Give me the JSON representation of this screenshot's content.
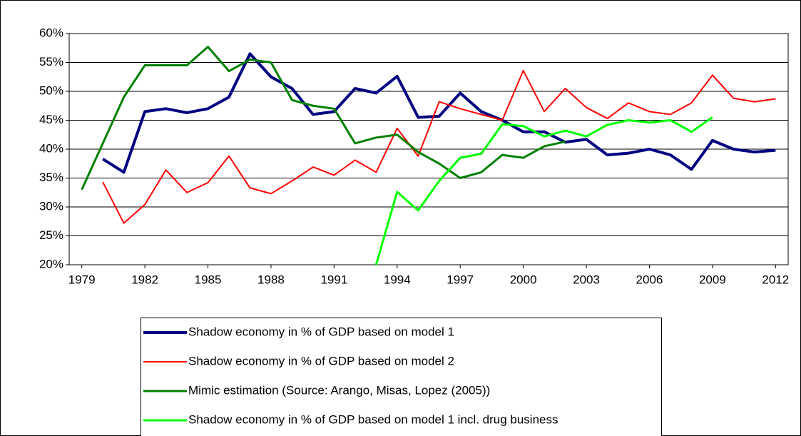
{
  "chart_data": {
    "type": "line",
    "x": [
      1979,
      1980,
      1981,
      1982,
      1983,
      1984,
      1985,
      1986,
      1987,
      1988,
      1989,
      1990,
      1991,
      1992,
      1993,
      1994,
      1995,
      1996,
      1997,
      1998,
      1999,
      2000,
      2001,
      2002,
      2003,
      2004,
      2005,
      2006,
      2007,
      2008,
      2009,
      2010,
      2011,
      2012
    ],
    "series": [
      {
        "name": "Shadow economy in % of GDP based on model 1",
        "color": "#000080",
        "width": 4,
        "values": [
          null,
          38.3,
          36,
          46.5,
          47,
          46.3,
          47,
          49,
          56.5,
          52.5,
          50.5,
          46,
          46.5,
          50.5,
          49.7,
          52.6,
          45.5,
          45.7,
          49.7,
          46.5,
          45,
          43,
          43,
          41.2,
          41.7,
          39,
          39.3,
          40,
          39,
          36.5,
          41.5,
          40,
          39.5,
          39.8
        ]
      },
      {
        "name": "Shadow economy in % of GDP based on model 2",
        "color": "#ff0000",
        "width": 2,
        "values": [
          null,
          34.3,
          27.2,
          30.4,
          36.4,
          32.5,
          34.2,
          38.8,
          33.3,
          32.3,
          34.5,
          36.9,
          35.5,
          38.1,
          36,
          43.6,
          38.8,
          48.2,
          47,
          46,
          45,
          53.6,
          46.5,
          50.5,
          47.2,
          45.3,
          48,
          46.5,
          46,
          48,
          52.8,
          48.8,
          48.2,
          48.7
        ]
      },
      {
        "name": "Mimic estimation (Source: Arango, Misas, Lopez (2005))",
        "color": "#008000",
        "width": 3,
        "values": [
          33,
          41,
          49,
          54.5,
          54.5,
          54.5,
          57.7,
          53.5,
          55.5,
          55,
          48.5,
          47.5,
          47,
          41,
          42,
          42.5,
          39.5,
          37.5,
          35,
          36,
          39,
          38.5,
          40.5,
          41.3,
          null,
          null,
          null,
          null,
          null,
          null,
          null,
          null,
          null,
          null
        ]
      },
      {
        "name": "Shadow economy in % of GDP based on model 1 incl. drug business",
        "color": "#00ff00",
        "width": 3,
        "values": [
          null,
          null,
          null,
          null,
          null,
          null,
          null,
          null,
          null,
          null,
          null,
          null,
          null,
          null,
          20,
          32.6,
          29.4,
          34.5,
          38.5,
          39.2,
          44.3,
          44,
          42.2,
          43.2,
          42.2,
          44.2,
          45,
          44.6,
          45,
          43,
          45.5,
          null,
          null,
          null
        ]
      }
    ],
    "xlim": [
      1978.4,
      2012.6
    ],
    "xticks": [
      1979,
      1982,
      1985,
      1988,
      1991,
      1994,
      1997,
      2000,
      2003,
      2006,
      2009,
      2012
    ],
    "ylim": [
      20,
      60
    ],
    "yticks": [
      {
        "value": 20,
        "label": "20%"
      },
      {
        "value": 25,
        "label": "25%"
      },
      {
        "value": 30,
        "label": "30%"
      },
      {
        "value": 35,
        "label": "35%"
      },
      {
        "value": 40,
        "label": "40%"
      },
      {
        "value": 45,
        "label": "45%"
      },
      {
        "value": 50,
        "label": "50%"
      },
      {
        "value": 55,
        "label": "55%"
      },
      {
        "value": 60,
        "label": "60%"
      }
    ],
    "grid": true
  }
}
